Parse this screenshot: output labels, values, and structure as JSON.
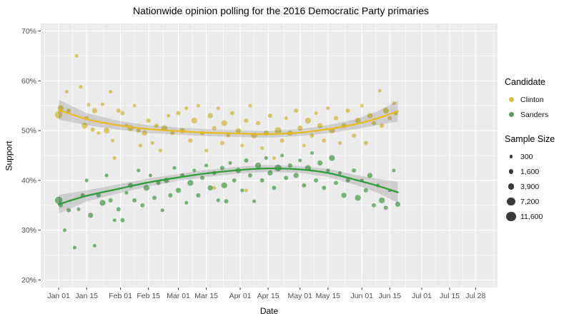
{
  "title": "Nationwide opinion polling for the 2016 Democratic Party primaries",
  "axes": {
    "x": {
      "label": "Date",
      "ticks": [
        {
          "label": "Jan 01",
          "day": 0
        },
        {
          "label": "Jan 15",
          "day": 14
        },
        {
          "label": "Feb 01",
          "day": 31
        },
        {
          "label": "Feb 15",
          "day": 45
        },
        {
          "label": "Mar 01",
          "day": 60
        },
        {
          "label": "Mar 15",
          "day": 74
        },
        {
          "label": "Apr 01",
          "day": 91
        },
        {
          "label": "Apr 15",
          "day": 105
        },
        {
          "label": "May 01",
          "day": 121
        },
        {
          "label": "May 15",
          "day": 135
        },
        {
          "label": "Jun 01",
          "day": 152
        },
        {
          "label": "Jun 15",
          "day": 166
        },
        {
          "label": "Jul 01",
          "day": 182
        },
        {
          "label": "Jul 15",
          "day": 196
        },
        {
          "label": "Jul 28",
          "day": 209
        }
      ],
      "minor_days": [
        -7,
        7,
        22.5,
        38,
        52.5,
        67,
        82.5,
        98,
        113,
        128,
        143.5,
        159,
        174,
        189,
        202.5,
        218
      ]
    },
    "y": {
      "label": "Support",
      "ticks": [
        {
          "label": "20%",
          "value": 20
        },
        {
          "label": "30%",
          "value": 30
        },
        {
          "label": "40%",
          "value": 40
        },
        {
          "label": "50%",
          "value": 50
        },
        {
          "label": "60%",
          "value": 60
        },
        {
          "label": "70%",
          "value": 70
        }
      ],
      "minor_values": [
        25,
        35,
        45,
        55,
        65
      ]
    }
  },
  "legend": {
    "candidate": {
      "title": "Candidate",
      "items": [
        {
          "label": "Clinton",
          "color": "#d2bc46"
        },
        {
          "label": "Sanders",
          "color": "#55a357"
        }
      ]
    },
    "sample_size": {
      "title": "Sample Size",
      "dot_color": "#3a3a3a",
      "items": [
        {
          "label": "300",
          "n": 300
        },
        {
          "label": "1,600",
          "n": 1600
        },
        {
          "label": "3,900",
          "n": 3900
        },
        {
          "label": "7,200",
          "n": 7200
        },
        {
          "label": "11,600",
          "n": 11600
        }
      ]
    }
  },
  "chart_data": {
    "type": "scatter",
    "title": "Nationwide opinion polling for the 2016 Democratic Party primaries",
    "xlabel": "Date",
    "ylabel": "Support",
    "x_unit": "days_since_2016-01-01",
    "x_domain": [
      -9,
      220
    ],
    "y_domain": [
      18.5,
      71.5
    ],
    "grid": true,
    "legend_position": "right",
    "panel_bg": "#ebebeb",
    "grid_color": "#ffffff",
    "band_color": "rgba(60,60,60,0.17)",
    "size_scale": {
      "domain": [
        300,
        11600
      ],
      "radius_px": [
        2.3,
        6.7
      ]
    },
    "points_format": "[day, support_pct, sample_size]",
    "trend_format": "[day, support_pct, ci_halfwidth_pct]",
    "series": [
      {
        "name": "Clinton",
        "point_color": "#d2bc46",
        "line_color": "#e9bb22",
        "points": [
          [
            0,
            53.2,
            6000
          ],
          [
            1,
            54.5,
            3000
          ],
          [
            4,
            57.8,
            500
          ],
          [
            5,
            54.0,
            1000
          ],
          [
            9,
            65.0,
            500
          ],
          [
            11,
            58.8,
            500
          ],
          [
            13,
            51.0,
            3000
          ],
          [
            14,
            52.5,
            1000
          ],
          [
            15,
            55.2,
            500
          ],
          [
            17,
            50.2,
            1000
          ],
          [
            18,
            54.0,
            2000
          ],
          [
            20,
            49.5,
            500
          ],
          [
            22,
            55.3,
            500
          ],
          [
            24,
            50.0,
            3000
          ],
          [
            26,
            57.8,
            500
          ],
          [
            27,
            48.0,
            500
          ],
          [
            28,
            44.5,
            500
          ],
          [
            30,
            54.0,
            1000
          ],
          [
            32,
            53.5,
            1000
          ],
          [
            34,
            51.0,
            500
          ],
          [
            36,
            50.5,
            3000
          ],
          [
            38,
            55.0,
            500
          ],
          [
            40,
            50.0,
            1000
          ],
          [
            41,
            47.0,
            500
          ],
          [
            43,
            49.5,
            2000
          ],
          [
            45,
            52.0,
            1000
          ],
          [
            47,
            47.5,
            500
          ],
          [
            49,
            51.0,
            1000
          ],
          [
            51,
            46.0,
            500
          ],
          [
            53,
            50.5,
            3000
          ],
          [
            55,
            53.0,
            500
          ],
          [
            57,
            49.5,
            1000
          ],
          [
            60,
            53.5,
            1000
          ],
          [
            62,
            50.0,
            2000
          ],
          [
            64,
            54.5,
            500
          ],
          [
            66,
            48.0,
            1000
          ],
          [
            68,
            52.0,
            3000
          ],
          [
            70,
            55.0,
            500
          ],
          [
            72,
            49.5,
            1000
          ],
          [
            74,
            46.0,
            500
          ],
          [
            76,
            53.0,
            2000
          ],
          [
            78,
            38.5,
            500
          ],
          [
            78,
            50.5,
            1000
          ],
          [
            80,
            54.5,
            500
          ],
          [
            82,
            47.5,
            1000
          ],
          [
            83,
            51.5,
            3000
          ],
          [
            85,
            49.0,
            500
          ],
          [
            87,
            53.5,
            1000
          ],
          [
            90,
            50.0,
            2000
          ],
          [
            92,
            47.0,
            500
          ],
          [
            94,
            38.0,
            500
          ],
          [
            94,
            52.0,
            1000
          ],
          [
            96,
            55.0,
            500
          ],
          [
            98,
            49.0,
            3000
          ],
          [
            100,
            51.5,
            1000
          ],
          [
            102,
            46.5,
            500
          ],
          [
            104,
            49.5,
            2000
          ],
          [
            106,
            53.0,
            1000
          ],
          [
            108,
            44.5,
            500
          ],
          [
            110,
            50.0,
            4500
          ],
          [
            112,
            48.0,
            1000
          ],
          [
            114,
            52.5,
            500
          ],
          [
            116,
            49.5,
            2000
          ],
          [
            119,
            54.0,
            1000
          ],
          [
            121,
            50.5,
            2000
          ],
          [
            123,
            47.0,
            500
          ],
          [
            125,
            52.0,
            3000
          ],
          [
            127,
            49.0,
            1000
          ],
          [
            129,
            53.5,
            500
          ],
          [
            131,
            51.0,
            2000
          ],
          [
            133,
            48.0,
            1000
          ],
          [
            135,
            54.5,
            500
          ],
          [
            137,
            50.0,
            3000
          ],
          [
            139,
            52.5,
            1000
          ],
          [
            141,
            47.5,
            500
          ],
          [
            143,
            51.0,
            2000
          ],
          [
            145,
            54.0,
            1000
          ],
          [
            148,
            49.0,
            1000
          ],
          [
            150,
            52.0,
            3000
          ],
          [
            152,
            55.0,
            500
          ],
          [
            154,
            47.5,
            1000
          ],
          [
            156,
            53.0,
            2000
          ],
          [
            158,
            51.5,
            1000
          ],
          [
            161,
            58.0,
            500
          ],
          [
            162,
            51.0,
            1000
          ],
          [
            164,
            54.0,
            3000
          ],
          [
            166,
            52.5,
            1000
          ],
          [
            168,
            55.5,
            500
          ],
          [
            169,
            53.5,
            1000
          ]
        ],
        "trend": [
          [
            0,
            54.2,
            2.0
          ],
          [
            14,
            52.3,
            1.2
          ],
          [
            31,
            51.0,
            0.9
          ],
          [
            45,
            50.3,
            0.8
          ],
          [
            60,
            49.9,
            0.7
          ],
          [
            74,
            49.6,
            0.7
          ],
          [
            91,
            49.4,
            0.7
          ],
          [
            105,
            49.3,
            0.7
          ],
          [
            121,
            49.6,
            0.7
          ],
          [
            135,
            50.3,
            0.8
          ],
          [
            149,
            51.3,
            1.0
          ],
          [
            160,
            52.5,
            1.4
          ],
          [
            170,
            53.9,
            2.1
          ]
        ]
      },
      {
        "name": "Sanders",
        "point_color": "#55a357",
        "line_color": "#2e9e38",
        "points": [
          [
            0,
            36.0,
            6000
          ],
          [
            1,
            35.0,
            1000
          ],
          [
            3,
            30.0,
            500
          ],
          [
            5,
            34.0,
            1000
          ],
          [
            8,
            26.5,
            500
          ],
          [
            10,
            34.2,
            500
          ],
          [
            12,
            37.0,
            1000
          ],
          [
            14,
            40.0,
            500
          ],
          [
            16,
            33.0,
            2000
          ],
          [
            18,
            26.9,
            500
          ],
          [
            20,
            37.0,
            1000
          ],
          [
            22,
            35.5,
            3000
          ],
          [
            24,
            41.0,
            500
          ],
          [
            26,
            36.0,
            1000
          ],
          [
            28,
            32.0,
            500
          ],
          [
            30,
            34.2,
            1000
          ],
          [
            32,
            32.0,
            1000
          ],
          [
            34,
            37.5,
            500
          ],
          [
            36,
            39.0,
            2000
          ],
          [
            38,
            36.0,
            1000
          ],
          [
            40,
            42.0,
            500
          ],
          [
            42,
            35.0,
            1000
          ],
          [
            44,
            38.5,
            3000
          ],
          [
            46,
            41.0,
            500
          ],
          [
            48,
            36.5,
            1000
          ],
          [
            50,
            39.5,
            1000
          ],
          [
            52,
            34.0,
            500
          ],
          [
            54,
            40.0,
            2000
          ],
          [
            56,
            37.0,
            1000
          ],
          [
            58,
            42.5,
            500
          ],
          [
            60,
            38.0,
            2000
          ],
          [
            62,
            41.0,
            1000
          ],
          [
            64,
            35.5,
            500
          ],
          [
            66,
            39.5,
            3000
          ],
          [
            68,
            42.0,
            500
          ],
          [
            70,
            37.0,
            1000
          ],
          [
            72,
            40.5,
            1000
          ],
          [
            74,
            43.0,
            500
          ],
          [
            76,
            38.5,
            2000
          ],
          [
            78,
            41.5,
            1000
          ],
          [
            80,
            36.0,
            500
          ],
          [
            82,
            42.5,
            1000
          ],
          [
            83,
            39.0,
            3000
          ],
          [
            84,
            35.8,
            1000
          ],
          [
            86,
            43.5,
            500
          ],
          [
            88,
            40.0,
            1000
          ],
          [
            90,
            42.0,
            2000
          ],
          [
            92,
            38.0,
            500
          ],
          [
            94,
            44.0,
            1000
          ],
          [
            96,
            41.0,
            1000
          ],
          [
            98,
            35.8,
            500
          ],
          [
            100,
            43.0,
            3000
          ],
          [
            102,
            40.0,
            1000
          ],
          [
            104,
            44.5,
            500
          ],
          [
            106,
            41.5,
            2000
          ],
          [
            108,
            38.5,
            1000
          ],
          [
            110,
            42.5,
            4500
          ],
          [
            112,
            45.0,
            500
          ],
          [
            114,
            40.5,
            1000
          ],
          [
            116,
            43.0,
            1000
          ],
          [
            119,
            41.0,
            2000
          ],
          [
            121,
            44.0,
            500
          ],
          [
            123,
            39.0,
            1000
          ],
          [
            125,
            42.5,
            3000
          ],
          [
            127,
            45.5,
            500
          ],
          [
            129,
            40.0,
            1000
          ],
          [
            131,
            43.5,
            2000
          ],
          [
            133,
            38.5,
            1000
          ],
          [
            135,
            42.0,
            500
          ],
          [
            137,
            44.5,
            3000
          ],
          [
            139,
            39.5,
            1000
          ],
          [
            141,
            41.5,
            500
          ],
          [
            143,
            37.0,
            2000
          ],
          [
            145,
            40.0,
            1000
          ],
          [
            148,
            42.0,
            1000
          ],
          [
            150,
            36.5,
            3000
          ],
          [
            152,
            40.0,
            500
          ],
          [
            154,
            38.0,
            1000
          ],
          [
            156,
            41.0,
            2000
          ],
          [
            158,
            35.0,
            1000
          ],
          [
            160,
            39.0,
            500
          ],
          [
            162,
            36.0,
            3000
          ],
          [
            164,
            34.5,
            1000
          ],
          [
            166,
            38.0,
            500
          ],
          [
            168,
            42.0,
            500
          ],
          [
            170,
            35.2,
            2000
          ]
        ],
        "trend": [
          [
            0,
            35.2,
            1.9
          ],
          [
            14,
            36.9,
            1.1
          ],
          [
            31,
            38.4,
            0.9
          ],
          [
            45,
            39.6,
            0.8
          ],
          [
            60,
            40.6,
            0.7
          ],
          [
            74,
            41.4,
            0.7
          ],
          [
            91,
            42.1,
            0.7
          ],
          [
            105,
            42.4,
            0.7
          ],
          [
            121,
            42.2,
            0.7
          ],
          [
            135,
            41.5,
            0.8
          ],
          [
            149,
            40.1,
            1.0
          ],
          [
            160,
            38.9,
            1.4
          ],
          [
            170,
            37.6,
            2.1
          ]
        ]
      }
    ]
  }
}
